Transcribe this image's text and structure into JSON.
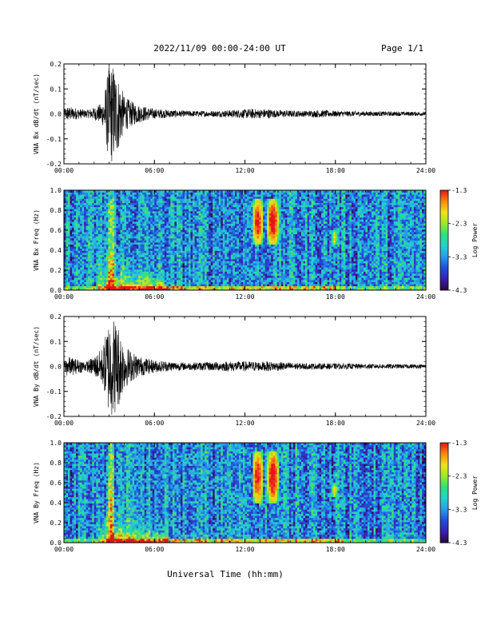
{
  "header": {
    "title": "2022/11/09  00:00-24:00 UT",
    "page": "Page 1/1"
  },
  "colors": {
    "trace": "#000000",
    "colormap": [
      "#2a0a3a",
      "#3b1fb0",
      "#1f4fd8",
      "#2a9be8",
      "#22d3d0",
      "#2fe07a",
      "#9ee82a",
      "#f0e21a",
      "#f58a12",
      "#e8121a"
    ]
  },
  "chart_data": [
    {
      "type": "line",
      "ylabel": "VNA Bx dB/dt (nT/sec)",
      "ylim": [
        -0.2,
        0.2
      ],
      "yticks": [
        "0.2",
        "0.1",
        "0.0",
        "-0.1",
        "-0.2"
      ],
      "xlim": [
        0,
        24
      ],
      "xticks": [
        "00:00",
        "06:00",
        "12:00",
        "18:00",
        "24:00"
      ],
      "envelope": {
        "hours": [
          0.0,
          0.2,
          1.5,
          2.2,
          2.6,
          3.0,
          3.3,
          3.6,
          4.0,
          4.5,
          5.0,
          6.0,
          8.0,
          10.0,
          11.0,
          12.0,
          12.5,
          13.0,
          13.5,
          14.0,
          16.0,
          17.0,
          18.0,
          20.0,
          24.0
        ],
        "amplitude": [
          0.015,
          0.03,
          0.015,
          0.03,
          0.05,
          0.2,
          0.2,
          0.15,
          0.07,
          0.05,
          0.035,
          0.02,
          0.012,
          0.012,
          0.015,
          0.018,
          0.02,
          0.018,
          0.02,
          0.015,
          0.012,
          0.015,
          0.012,
          0.01,
          0.008
        ]
      }
    },
    {
      "type": "heatmap",
      "ylabel": "VNA Bx Freq (Hz)",
      "ylim": [
        0.0,
        1.0
      ],
      "yticks": [
        "1.0",
        "0.8",
        "0.6",
        "0.4",
        "0.2",
        "0.0"
      ],
      "xlim": [
        0,
        24
      ],
      "xticks": [
        "00:00",
        "06:00",
        "12:00",
        "18:00",
        "24:00"
      ],
      "colorbar": {
        "label": "Log Power",
        "range": [
          -4.3,
          -1.3
        ],
        "ticks": [
          "-1.3",
          "-2.3",
          "-3.3",
          "-4.3"
        ]
      },
      "features": [
        {
          "t0": 12.5,
          "t1": 13.2,
          "f0": 0.45,
          "f1": 0.92,
          "level": 0.7
        },
        {
          "t0": 13.5,
          "t1": 14.2,
          "f0": 0.45,
          "f1": 0.92,
          "level": 0.75
        },
        {
          "t0": 17.8,
          "t1": 18.1,
          "f0": 0.45,
          "f1": 0.6,
          "level": 0.5
        }
      ]
    },
    {
      "type": "line",
      "ylabel": "VNA By dB/dt (nT/sec)",
      "ylim": [
        -0.2,
        0.2
      ],
      "yticks": [
        "0.2",
        "0.1",
        "0.0",
        "-0.1",
        "-0.2"
      ],
      "xlim": [
        0,
        24
      ],
      "xticks": [
        "00:00",
        "06:00",
        "12:00",
        "18:00",
        "24:00"
      ],
      "envelope": {
        "hours": [
          0.0,
          0.2,
          1.5,
          2.2,
          2.6,
          3.0,
          3.3,
          3.6,
          4.0,
          4.5,
          5.0,
          6.0,
          8.0,
          10.0,
          11.0,
          12.0,
          12.5,
          13.0,
          13.5,
          14.0,
          16.0,
          17.0,
          18.0,
          20.0,
          24.0
        ],
        "amplitude": [
          0.02,
          0.04,
          0.02,
          0.05,
          0.08,
          0.2,
          0.2,
          0.17,
          0.09,
          0.06,
          0.04,
          0.025,
          0.015,
          0.018,
          0.02,
          0.02,
          0.02,
          0.018,
          0.02,
          0.018,
          0.012,
          0.012,
          0.012,
          0.01,
          0.008
        ]
      }
    },
    {
      "type": "heatmap",
      "ylabel": "VNA By Freq (Hz)",
      "ylim": [
        0.0,
        1.0
      ],
      "yticks": [
        "1.0",
        "0.8",
        "0.6",
        "0.4",
        "0.2",
        "0.0"
      ],
      "xlim": [
        0,
        24
      ],
      "xticks": [
        "00:00",
        "06:00",
        "12:00",
        "18:00",
        "24:00"
      ],
      "colorbar": {
        "label": "Log Power",
        "range": [
          -4.3,
          -1.3
        ],
        "ticks": [
          "-1.3",
          "-2.3",
          "-3.3",
          "-4.3"
        ]
      },
      "features": [
        {
          "t0": 12.5,
          "t1": 13.2,
          "f0": 0.4,
          "f1": 0.92,
          "level": 0.7
        },
        {
          "t0": 13.5,
          "t1": 14.2,
          "f0": 0.4,
          "f1": 0.92,
          "level": 0.75
        },
        {
          "t0": 17.8,
          "t1": 18.1,
          "f0": 0.45,
          "f1": 0.6,
          "level": 0.5
        }
      ]
    }
  ],
  "xaxis": {
    "label": "Universal Time (hh:mm)"
  }
}
